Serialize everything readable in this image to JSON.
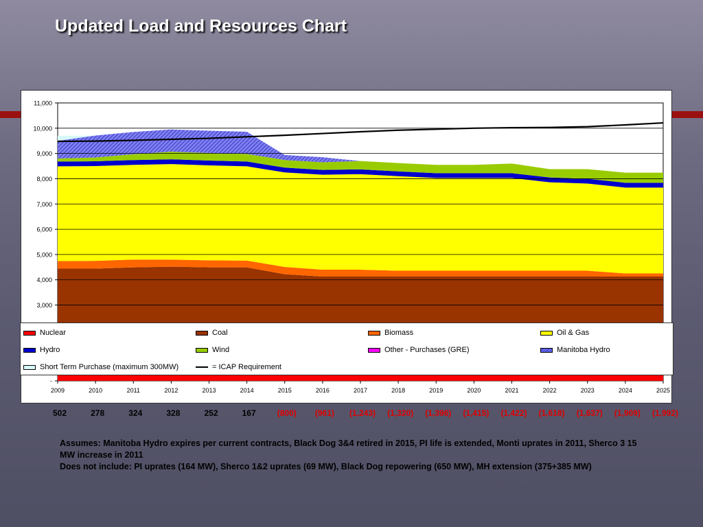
{
  "slide": {
    "title": "Updated Load and Resources Chart"
  },
  "chart_data": {
    "type": "area",
    "stacked": true,
    "categories": [
      "2009",
      "2010",
      "2011",
      "2012",
      "2013",
      "2014",
      "2015",
      "2016",
      "2017",
      "2018",
      "2019",
      "2020",
      "2021",
      "2022",
      "2023",
      "2024",
      "2025"
    ],
    "ylim": [
      0,
      11000
    ],
    "yticks": [
      "-",
      "1,000",
      "2,000",
      "3,000",
      "4,000",
      "5,000",
      "6,000",
      "7,000",
      "8,000",
      "9,000",
      "10,000",
      "11,000"
    ],
    "grid": "horizontal",
    "series": [
      {
        "name": "Nuclear",
        "color": "#ff0000",
        "values": [
          1600,
          1600,
          1600,
          1600,
          1600,
          1600,
          1600,
          1600,
          1600,
          1600,
          1600,
          1600,
          1600,
          1600,
          1600,
          1600,
          1600
        ]
      },
      {
        "name": "Coal",
        "color": "#993300",
        "values": [
          2840,
          2840,
          2890,
          2920,
          2890,
          2890,
          2620,
          2530,
          2530,
          2530,
          2530,
          2530,
          2530,
          2530,
          2530,
          2530,
          2530
        ]
      },
      {
        "name": "Biomass",
        "color": "#ff6600",
        "values": [
          300,
          310,
          310,
          280,
          280,
          270,
          290,
          270,
          270,
          230,
          230,
          230,
          230,
          230,
          230,
          120,
          120
        ]
      },
      {
        "name": "Oil & Gas",
        "color": "#ffff00",
        "values": [
          3750,
          3750,
          3750,
          3780,
          3760,
          3730,
          3740,
          3760,
          3780,
          3740,
          3670,
          3670,
          3670,
          3500,
          3450,
          3400,
          3400
        ]
      },
      {
        "name": "Hydro",
        "color": "#0000cc",
        "values": [
          190,
          190,
          190,
          190,
          190,
          190,
          190,
          190,
          190,
          190,
          190,
          190,
          190,
          190,
          190,
          190,
          190
        ]
      },
      {
        "name": "Wind",
        "color": "#99cc00",
        "values": [
          120,
          150,
          230,
          300,
          300,
          300,
          300,
          300,
          330,
          330,
          330,
          330,
          380,
          330,
          380,
          400,
          400
        ]
      },
      {
        "name": "Other - Purchases (GRE)",
        "color": "#ff00ff",
        "values": [
          0,
          0,
          0,
          0,
          0,
          0,
          0,
          0,
          0,
          0,
          0,
          0,
          0,
          0,
          0,
          0,
          0
        ]
      },
      {
        "name": "Manitoba Hydro",
        "color": "#4444dd",
        "values": [
          700,
          870,
          880,
          880,
          880,
          880,
          200,
          200,
          0,
          0,
          0,
          0,
          0,
          0,
          0,
          0,
          0
        ]
      },
      {
        "name": "Short Term Purchase (maximum 300MW)",
        "color": "#d8f8f8",
        "values": [
          200,
          0,
          0,
          0,
          0,
          0,
          0,
          0,
          0,
          0,
          0,
          0,
          0,
          0,
          0,
          0,
          0
        ]
      },
      {
        "name": "= ICAP Requirement",
        "color": "#000000",
        "type": "line",
        "values": [
          9480,
          9490,
          9520,
          9560,
          9600,
          9660,
          9720,
          9790,
          9860,
          9920,
          9960,
          10000,
          10020,
          10030,
          10060,
          10130,
          10210
        ]
      }
    ],
    "balance": [
      "502",
      "278",
      "324",
      "328",
      "252",
      "167",
      "(800)",
      "(961)",
      "(1,243)",
      "(1,320)",
      "(1,396)",
      "(1,415)",
      "(1,422)",
      "(1,618)",
      "(1,637)",
      "(1,909)",
      "(1,992)"
    ]
  },
  "notes": {
    "assumes": "Assumes:  Manitoba Hydro expires per current contracts, Black Dog 3&4 retired in 2015, PI life is extended, Monti uprates in 2011, Sherco 3 15 MW increase in 2011",
    "excludes": "Does not include:  PI uprates (164 MW), Sherco 1&2 uprates (69 MW), Black Dog repowering (650 MW), MH extension (375+385 MW)"
  }
}
